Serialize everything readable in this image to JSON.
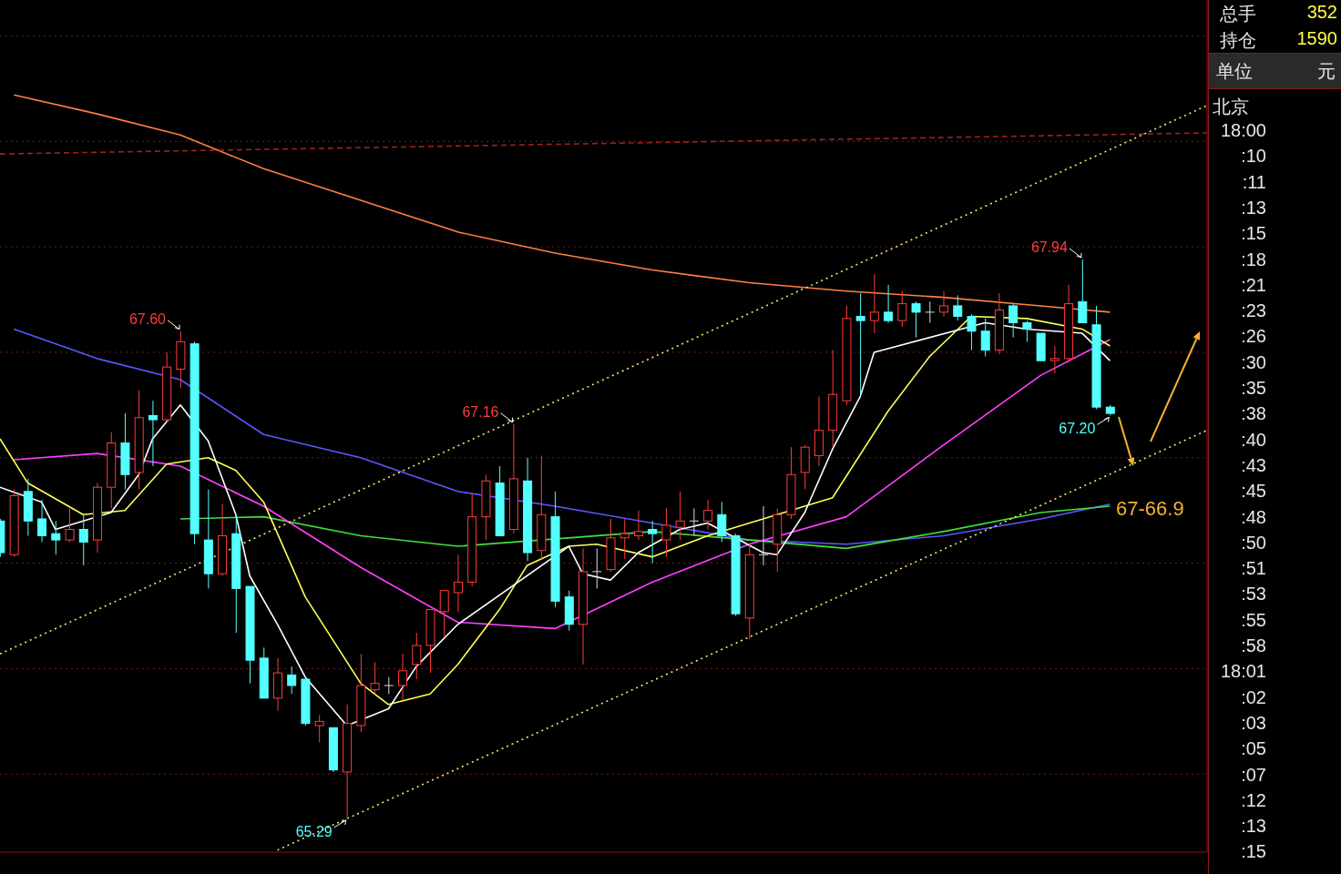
{
  "chart_data": [
    {
      "type": "candlestick",
      "categories": [
        null,
        null,
        null,
        null,
        null,
        null,
        null,
        null,
        null,
        null,
        null,
        null,
        null,
        null,
        null,
        null,
        null,
        null,
        null,
        null,
        null,
        null,
        null,
        null,
        null,
        null,
        null,
        null,
        null,
        null,
        null,
        null,
        null,
        null,
        null,
        null,
        null,
        null,
        null,
        null,
        null,
        null,
        null,
        null,
        null,
        null,
        null,
        null,
        null,
        null,
        null,
        null,
        null,
        null,
        null,
        null,
        null,
        null,
        null,
        null,
        null,
        null,
        null,
        null,
        null,
        null,
        null,
        null,
        null,
        null,
        null,
        null,
        null,
        null,
        null,
        null,
        null,
        null,
        null,
        null,
        null,
        null,
        null,
        null,
        null,
        null,
        null,
        null
      ],
      "ohlc": [
        [
          66.7,
          66.71,
          66.53,
          66.55
        ],
        [
          66.54,
          66.85,
          66.53,
          66.82
        ],
        [
          66.84,
          66.9,
          66.63,
          66.7
        ],
        [
          66.71,
          66.8,
          66.6,
          66.63
        ],
        [
          66.64,
          66.7,
          66.54,
          66.61
        ],
        [
          66.61,
          66.76,
          66.6,
          66.66
        ],
        [
          66.66,
          66.73,
          66.49,
          66.6
        ],
        [
          66.61,
          66.88,
          66.55,
          66.86
        ],
        [
          66.86,
          67.12,
          66.76,
          67.07
        ],
        [
          67.07,
          67.21,
          66.85,
          66.92
        ],
        [
          66.93,
          67.32,
          66.85,
          67.19
        ],
        [
          67.2,
          67.27,
          66.96,
          67.18
        ],
        [
          67.18,
          67.5,
          67.17,
          67.43
        ],
        [
          67.42,
          67.6,
          67.33,
          67.55
        ],
        [
          67.54,
          67.55,
          66.59,
          66.64
        ],
        [
          66.61,
          66.85,
          66.38,
          66.45
        ],
        [
          66.45,
          66.78,
          66.44,
          66.63
        ],
        [
          66.64,
          66.73,
          66.17,
          66.38
        ],
        [
          66.39,
          66.39,
          65.93,
          66.04
        ],
        [
          66.05,
          66.1,
          65.86,
          65.86
        ],
        [
          65.86,
          66.05,
          65.8,
          65.98
        ],
        [
          65.97,
          66.01,
          65.88,
          65.92
        ],
        [
          65.95,
          65.95,
          65.73,
          65.74
        ],
        [
          65.73,
          65.78,
          65.65,
          65.75
        ],
        [
          65.72,
          65.72,
          65.51,
          65.52
        ],
        [
          65.51,
          65.83,
          65.29,
          65.74
        ],
        [
          65.73,
          66.07,
          65.7,
          65.92
        ],
        [
          65.9,
          66.03,
          65.88,
          65.93
        ],
        [
          65.92,
          65.96,
          65.88,
          65.92
        ],
        [
          65.92,
          66.07,
          65.85,
          65.99
        ],
        [
          66.02,
          66.17,
          65.95,
          66.11
        ],
        [
          66.11,
          66.28,
          65.98,
          66.28
        ],
        [
          66.27,
          66.37,
          66.15,
          66.37
        ],
        [
          66.36,
          66.54,
          66.27,
          66.41
        ],
        [
          66.41,
          66.83,
          66.39,
          66.72
        ],
        [
          66.72,
          66.92,
          66.61,
          66.89
        ],
        [
          66.88,
          66.96,
          66.63,
          66.63
        ],
        [
          66.66,
          67.16,
          66.64,
          66.9
        ],
        [
          66.89,
          67.0,
          66.51,
          66.55
        ],
        [
          66.56,
          67.01,
          66.52,
          66.73
        ],
        [
          66.72,
          66.84,
          66.29,
          66.32
        ],
        [
          66.34,
          66.37,
          66.18,
          66.21
        ],
        [
          66.21,
          66.57,
          66.02,
          66.46
        ],
        [
          66.46,
          66.57,
          66.38,
          66.46
        ],
        [
          66.47,
          66.71,
          66.46,
          66.62
        ],
        [
          66.62,
          66.71,
          66.52,
          66.64
        ],
        [
          66.63,
          66.75,
          66.61,
          66.65
        ],
        [
          66.66,
          66.7,
          66.5,
          66.64
        ],
        [
          66.61,
          66.76,
          66.53,
          66.68
        ],
        [
          66.67,
          66.84,
          66.61,
          66.7
        ],
        [
          66.7,
          66.76,
          66.63,
          66.7
        ],
        [
          66.7,
          66.8,
          66.66,
          66.75
        ],
        [
          66.73,
          66.79,
          66.6,
          66.63
        ],
        [
          66.63,
          66.64,
          66.25,
          66.26
        ],
        [
          66.24,
          66.59,
          66.14,
          66.54
        ],
        [
          66.54,
          66.77,
          66.49,
          66.54
        ],
        [
          66.59,
          66.76,
          66.46,
          66.73
        ],
        [
          66.73,
          67.05,
          66.71,
          66.92
        ],
        [
          66.93,
          67.06,
          66.85,
          67.05
        ],
        [
          67.01,
          67.29,
          66.96,
          67.13
        ],
        [
          67.13,
          67.51,
          67.05,
          67.3
        ],
        [
          67.27,
          67.72,
          67.25,
          67.66
        ],
        [
          67.67,
          67.78,
          67.3,
          67.65
        ],
        [
          67.65,
          67.87,
          67.59,
          67.69
        ],
        [
          67.69,
          67.82,
          67.64,
          67.65
        ],
        [
          67.65,
          67.79,
          67.62,
          67.73
        ],
        [
          67.73,
          67.74,
          67.57,
          67.69
        ],
        [
          67.69,
          67.74,
          67.64,
          67.69
        ],
        [
          67.69,
          67.79,
          67.67,
          67.72
        ],
        [
          67.72,
          67.77,
          67.65,
          67.67
        ],
        [
          67.67,
          67.68,
          67.51,
          67.6
        ],
        [
          67.6,
          67.66,
          67.48,
          67.51
        ],
        [
          67.51,
          67.78,
          67.49,
          67.7
        ],
        [
          67.72,
          67.73,
          67.57,
          67.64
        ],
        [
          67.64,
          67.65,
          67.55,
          67.61
        ],
        [
          67.59,
          67.59,
          67.46,
          67.46
        ],
        [
          67.46,
          67.53,
          67.4,
          67.47
        ],
        [
          67.47,
          67.82,
          67.45,
          67.73
        ],
        [
          67.74,
          67.94,
          67.64,
          67.64
        ],
        [
          67.63,
          67.72,
          67.23,
          67.24
        ],
        [
          67.24,
          67.25,
          67.2,
          67.21
        ],
        null,
        null,
        null,
        null,
        null,
        null,
        null
      ],
      "colors": [
        "#54ffff",
        "#ff3c3c",
        "#54ffff",
        "#54ffff",
        "#54ffff",
        "#ff3c3c",
        "#54ffff",
        "#ff3c3c",
        "#ff3c3c",
        "#54ffff",
        "#ff3c3c",
        "#54ffff",
        "#ff3c3c",
        "#ff3c3c",
        "#54ffff",
        "#54ffff",
        "#ff3c3c",
        "#54ffff",
        "#54ffff",
        "#54ffff",
        "#ff3c3c",
        "#54ffff",
        "#54ffff",
        "#ff3c3c",
        "#54ffff",
        "#ff3c3c",
        "#ff3c3c",
        "#ff3c3c",
        "#dcdcdc",
        "#ff3c3c",
        "#ff3c3c",
        "#ff3c3c",
        "#ff3c3c",
        "#ff3c3c",
        "#ff3c3c",
        "#ff3c3c",
        "#54ffff",
        "#ff3c3c",
        "#54ffff",
        "#ff3c3c",
        "#54ffff",
        "#54ffff",
        "#ff3c3c",
        "#dcdcdc",
        "#ff3c3c",
        "#ff3c3c",
        "#ff3c3c",
        "#54ffff",
        "#ff3c3c",
        "#ff3c3c",
        "#dcdcdc",
        "#ff3c3c",
        "#54ffff",
        "#54ffff",
        "#ff3c3c",
        "#dcdcdc",
        "#ff3c3c",
        "#ff3c3c",
        "#ff3c3c",
        "#ff3c3c",
        "#ff3c3c",
        "#ff3c3c",
        "#54ffff",
        "#ff3c3c",
        "#54ffff",
        "#ff3c3c",
        "#54ffff",
        "#dcdcdc",
        "#ff3c3c",
        "#54ffff",
        "#54ffff",
        "#54ffff",
        "#ff3c3c",
        "#54ffff",
        "#54ffff",
        "#54ffff",
        "#ff3c3c",
        "#ff3c3c",
        "#54ffff",
        "#54ffff",
        "#54ffff",
        null,
        null,
        null,
        null,
        null,
        null,
        null
      ],
      "series": [
        {
          "type": "line",
          "color": "#ff8040",
          "values": [
            null,
            68.72,
            null,
            null,
            null,
            null,
            null,
            68.63,
            null,
            null,
            null,
            null,
            null,
            68.53,
            null,
            null,
            null,
            null,
            null,
            68.37,
            null,
            null,
            null,
            null,
            null,
            null,
            68.22,
            null,
            null,
            null,
            null,
            null,
            null,
            68.07,
            null,
            null,
            null,
            null,
            null,
            null,
            67.97,
            null,
            null,
            null,
            null,
            null,
            null,
            67.89,
            null,
            null,
            null,
            null,
            null,
            null,
            67.83,
            null,
            null,
            null,
            null,
            null,
            null,
            67.79,
            null,
            null,
            null,
            null,
            null,
            null,
            67.76,
            null,
            null,
            null,
            null,
            null,
            null,
            67.72,
            null,
            null,
            null,
            null,
            67.69,
            null,
            null,
            null,
            null,
            null,
            null,
            null
          ]
        },
        {
          "type": "line",
          "color": "#5858ff",
          "values": [
            null,
            67.61,
            null,
            null,
            null,
            null,
            null,
            67.47,
            null,
            null,
            null,
            null,
            null,
            67.37,
            null,
            null,
            null,
            null,
            null,
            67.11,
            null,
            null,
            null,
            null,
            null,
            null,
            67.0,
            null,
            null,
            null,
            null,
            null,
            null,
            66.84,
            null,
            null,
            null,
            null,
            null,
            null,
            66.77,
            null,
            null,
            null,
            null,
            null,
            null,
            66.69,
            null,
            null,
            null,
            null,
            null,
            null,
            66.61,
            null,
            null,
            null,
            null,
            null,
            null,
            66.59,
            null,
            null,
            null,
            null,
            null,
            null,
            66.63,
            null,
            null,
            null,
            null,
            null,
            null,
            66.71,
            null,
            null,
            null,
            null,
            66.78,
            null,
            null,
            null,
            null,
            null,
            null,
            null
          ]
        },
        {
          "type": "line",
          "color": "#40e040",
          "values": [
            null,
            null,
            null,
            null,
            null,
            null,
            null,
            null,
            null,
            null,
            null,
            null,
            null,
            66.71,
            null,
            null,
            null,
            null,
            null,
            66.72,
            null,
            null,
            null,
            null,
            null,
            null,
            66.63,
            null,
            null,
            null,
            null,
            null,
            null,
            66.58,
            null,
            null,
            null,
            null,
            null,
            null,
            null,
            null,
            null,
            null,
            null,
            null,
            null,
            66.65,
            null,
            null,
            null,
            null,
            null,
            null,
            66.61,
            null,
            null,
            null,
            null,
            null,
            null,
            66.57,
            null,
            null,
            null,
            null,
            null,
            null,
            66.65,
            null,
            null,
            null,
            null,
            null,
            null,
            66.74,
            null,
            null,
            null,
            null,
            66.77,
            null,
            null,
            null,
            null,
            null,
            null,
            null
          ]
        },
        {
          "type": "line",
          "color": "#ff40ff",
          "values": [
            null,
            66.99,
            null,
            null,
            null,
            null,
            null,
            67.02,
            null,
            null,
            null,
            null,
            null,
            66.96,
            null,
            null,
            null,
            null,
            null,
            66.77,
            null,
            null,
            null,
            null,
            null,
            null,
            66.48,
            null,
            null,
            null,
            null,
            null,
            null,
            66.22,
            null,
            null,
            null,
            null,
            null,
            null,
            66.19,
            null,
            null,
            null,
            null,
            null,
            null,
            66.41,
            null,
            null,
            null,
            null,
            null,
            null,
            66.59,
            null,
            null,
            null,
            null,
            null,
            null,
            66.72,
            null,
            null,
            null,
            null,
            null,
            null,
            67.06,
            null,
            null,
            null,
            null,
            null,
            null,
            67.39,
            null,
            null,
            null,
            null,
            67.56,
            null,
            null,
            null,
            null,
            null,
            null,
            null
          ]
        },
        {
          "type": "line",
          "color": "#ffff58",
          "values": [
            67.09,
            null,
            66.88,
            null,
            null,
            null,
            66.73,
            null,
            null,
            66.75,
            null,
            null,
            66.97,
            null,
            null,
            67.0,
            null,
            66.94,
            null,
            66.79,
            null,
            null,
            66.34,
            null,
            null,
            null,
            65.93,
            null,
            65.83,
            null,
            null,
            65.88,
            null,
            66.02,
            null,
            null,
            66.28,
            null,
            66.49,
            null,
            null,
            66.58,
            null,
            66.59,
            null,
            null,
            null,
            66.53,
            null,
            null,
            null,
            66.63,
            null,
            null,
            null,
            null,
            null,
            null,
            null,
            null,
            66.81,
            null,
            null,
            null,
            67.22,
            null,
            null,
            67.48,
            null,
            null,
            67.67,
            null,
            null,
            null,
            67.66,
            null,
            null,
            null,
            67.61,
            null,
            67.53,
            null,
            null,
            null,
            null,
            null,
            null,
            null
          ]
        },
        {
          "type": "line",
          "color": "#ffffff",
          "values": [
            66.86,
            null,
            null,
            66.79,
            66.66,
            null,
            null,
            null,
            66.74,
            null,
            66.92,
            67.09,
            null,
            67.25,
            null,
            67.08,
            null,
            66.73,
            66.44,
            null,
            66.21,
            null,
            65.96,
            null,
            null,
            65.73,
            null,
            null,
            65.81,
            null,
            66.01,
            null,
            null,
            66.21,
            null,
            null,
            null,
            null,
            null,
            null,
            null,
            66.58,
            66.45,
            null,
            66.42,
            null,
            66.55,
            null,
            null,
            66.66,
            null,
            66.69,
            null,
            null,
            null,
            66.55,
            66.54,
            null,
            66.74,
            null,
            67.04,
            null,
            67.29,
            67.5,
            null,
            null,
            null,
            null,
            null,
            null,
            null,
            67.64,
            null,
            null,
            67.61,
            null,
            null,
            null,
            67.59,
            null,
            67.46,
            null,
            null,
            null,
            null,
            null,
            null,
            null
          ]
        },
        {
          "type": "line",
          "color": "#f0f070",
          "line_style": "dotted",
          "values": [
            66.07,
            null,
            null,
            null,
            null,
            null,
            null,
            null,
            null,
            null,
            null,
            null,
            null,
            null,
            null,
            null,
            null,
            null,
            null,
            null,
            null,
            null,
            null,
            null,
            null,
            null,
            null,
            null,
            null,
            null,
            null,
            null,
            null,
            null,
            null,
            null,
            null,
            null,
            null,
            null,
            null,
            null,
            null,
            null,
            null,
            null,
            null,
            null,
            null,
            null,
            null,
            null,
            null,
            null,
            null,
            null,
            null,
            null,
            null,
            null,
            null,
            null,
            null,
            null,
            null,
            null,
            null,
            null,
            null,
            null,
            null,
            null,
            null,
            null,
            null,
            null,
            null,
            null,
            null,
            null,
            null,
            null,
            null,
            null,
            null,
            null,
            null,
            68.67
          ]
        },
        {
          "type": "line",
          "color": "#f0f070",
          "line_style": "dotted",
          "values": [
            null,
            null,
            null,
            null,
            null,
            null,
            null,
            null,
            null,
            null,
            null,
            null,
            null,
            null,
            null,
            null,
            null,
            null,
            null,
            null,
            65.14,
            null,
            null,
            null,
            null,
            null,
            null,
            null,
            null,
            null,
            null,
            null,
            null,
            null,
            null,
            null,
            null,
            null,
            null,
            null,
            null,
            null,
            null,
            null,
            null,
            null,
            null,
            null,
            null,
            null,
            null,
            null,
            null,
            null,
            null,
            null,
            null,
            null,
            null,
            null,
            null,
            null,
            null,
            null,
            null,
            null,
            null,
            null,
            null,
            null,
            null,
            null,
            null,
            null,
            null,
            null,
            null,
            null,
            null,
            null,
            null,
            null,
            null,
            null,
            null,
            null,
            null,
            67.13
          ]
        },
        {
          "type": "line",
          "color": "#a02020",
          "line_style": "dashed",
          "values": [
            68.44,
            null,
            null,
            null,
            null,
            null,
            null,
            null,
            null,
            null,
            null,
            null,
            null,
            null,
            null,
            null,
            null,
            null,
            null,
            null,
            null,
            null,
            null,
            null,
            null,
            null,
            null,
            null,
            null,
            null,
            null,
            null,
            null,
            null,
            null,
            null,
            null,
            null,
            null,
            null,
            null,
            null,
            null,
            null,
            null,
            null,
            null,
            null,
            null,
            null,
            null,
            null,
            null,
            null,
            null,
            null,
            null,
            null,
            null,
            null,
            null,
            null,
            null,
            null,
            null,
            null,
            null,
            null,
            null,
            null,
            null,
            null,
            null,
            null,
            null,
            null,
            null,
            null,
            null,
            null,
            null,
            null,
            null,
            null,
            null,
            null,
            null,
            68.54
          ]
        }
      ],
      "ylim": [
        65.13,
        69.17
      ],
      "yticks": [
        {
          "value": 65.5,
          "label": null
        },
        {
          "value": 66.0,
          "label": null
        },
        {
          "value": 66.5,
          "label": null
        },
        {
          "value": 67.0,
          "label": null
        },
        {
          "value": 67.5,
          "label": null
        },
        {
          "value": 68.0,
          "label": null
        },
        {
          "value": 68.5,
          "label": null
        },
        {
          "value": 69.0,
          "label": null
        }
      ],
      "grid": "y",
      "annotations": [
        "67.60",
        "67.16",
        "67.94",
        "65.29",
        "67.20",
        "67-66.9"
      ]
    },
    {
      "type": "other",
      "annotations": [
        "总手",
        "352",
        "持仓",
        "1590",
        "单位",
        "元",
        "北京",
        "18:00",
        ":10",
        ":11",
        ":13",
        ":15",
        ":18",
        ":21",
        ":23",
        ":26",
        ":30",
        ":35",
        ":38",
        ":40",
        ":43",
        ":45",
        ":48",
        ":50",
        ":51",
        ":53",
        ":55",
        ":58",
        "18:01",
        ":02",
        ":03",
        ":05",
        ":07",
        ":12",
        ":13",
        ":15"
      ]
    }
  ]
}
